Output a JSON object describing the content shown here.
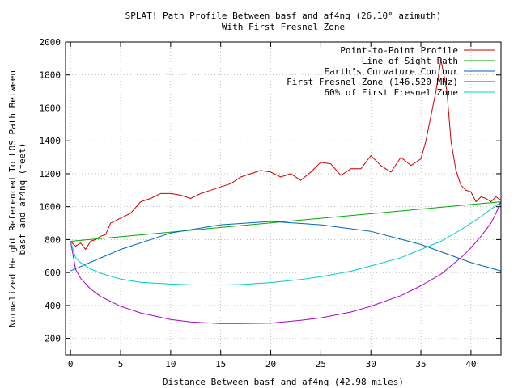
{
  "chart_data": {
    "type": "line",
    "title": "SPLAT! Path Profile Between basf and af4nq (26.10° azimuth)",
    "subtitle": "With First Fresnel Zone",
    "xlabel": "Distance Between basf and af4nq (42.98 miles)",
    "ylabel_line1": "Normalized Height Referenced To LOS Path Between",
    "ylabel_line2": "basf and af4nq (feet)",
    "xlim": [
      -0.5,
      43
    ],
    "ylim": [
      100,
      2000
    ],
    "x_ticks": [
      0,
      5,
      10,
      15,
      20,
      25,
      30,
      35,
      40
    ],
    "y_ticks": [
      200,
      400,
      600,
      800,
      1000,
      1200,
      1400,
      1600,
      1800,
      2000
    ],
    "x_tick_labels": [
      "0",
      "5",
      "10",
      "15",
      "20",
      "25",
      "30",
      "35",
      "40"
    ],
    "y_tick_labels": [
      "200",
      "400",
      "600",
      "800",
      "1000",
      "1200",
      "1400",
      "1600",
      "1800",
      "2000"
    ],
    "grid": true,
    "legend_position": "top-right",
    "series": [
      {
        "name": "Point-to-Point Profile",
        "color": "#cc0000",
        "x": [
          0,
          0.5,
          1,
          1.5,
          2,
          2.5,
          3,
          3.5,
          4,
          5,
          6,
          7,
          8,
          9,
          10,
          11,
          12,
          13,
          14,
          15,
          16,
          17,
          18,
          19,
          20,
          21,
          22,
          23,
          24,
          25,
          26,
          27,
          28,
          29,
          30,
          31,
          32,
          33,
          34,
          35,
          35.5,
          36,
          36.5,
          37,
          37.3,
          37.6,
          38,
          38.5,
          39,
          39.5,
          40,
          40.5,
          41,
          41.5,
          42,
          42.5,
          42.98
        ],
        "y": [
          790,
          760,
          780,
          740,
          790,
          800,
          820,
          830,
          900,
          930,
          960,
          1030,
          1050,
          1080,
          1080,
          1070,
          1050,
          1080,
          1100,
          1120,
          1140,
          1180,
          1200,
          1220,
          1210,
          1180,
          1200,
          1160,
          1210,
          1270,
          1260,
          1190,
          1230,
          1230,
          1310,
          1250,
          1210,
          1300,
          1250,
          1290,
          1400,
          1550,
          1700,
          1890,
          1800,
          1700,
          1400,
          1220,
          1130,
          1100,
          1090,
          1030,
          1060,
          1050,
          1030,
          1060,
          1040
        ]
      },
      {
        "name": "Line of Sight Path",
        "color": "#00aa00",
        "x": [
          0,
          42.98
        ],
        "y": [
          790,
          1030
        ]
      },
      {
        "name": "Earth’s Curvature Contour",
        "color": "#0066bb",
        "x": [
          0,
          5,
          10,
          15,
          20,
          25,
          30,
          35,
          40,
          42.98
        ],
        "y": [
          610,
          740,
          840,
          890,
          910,
          890,
          850,
          770,
          660,
          610
        ]
      },
      {
        "name": "First Fresnel Zone (146.520 MHz)",
        "color": "#aa00cc",
        "x": [
          0,
          0.5,
          1,
          2,
          3,
          5,
          7,
          10,
          12,
          15,
          17,
          20,
          23,
          25,
          28,
          30,
          33,
          35,
          37,
          39,
          40,
          41,
          42,
          42.5,
          42.98
        ],
        "y": [
          790,
          620,
          565,
          500,
          455,
          395,
          355,
          315,
          300,
          290,
          290,
          293,
          310,
          325,
          360,
          395,
          460,
          520,
          590,
          690,
          750,
          820,
          900,
          960,
          1030
        ]
      },
      {
        "name": "60% of First Fresnel Zone",
        "color": "#00cccc",
        "x": [
          0,
          0.5,
          1,
          2,
          3,
          5,
          7,
          10,
          12,
          15,
          17,
          20,
          23,
          25,
          28,
          30,
          33,
          35,
          37,
          39,
          40,
          41,
          42,
          42.5,
          42.98
        ],
        "y": [
          790,
          690,
          660,
          622,
          596,
          560,
          541,
          530,
          525,
          524,
          527,
          539,
          558,
          575,
          608,
          640,
          690,
          740,
          790,
          860,
          900,
          940,
          985,
          1005,
          1030
        ]
      }
    ]
  }
}
